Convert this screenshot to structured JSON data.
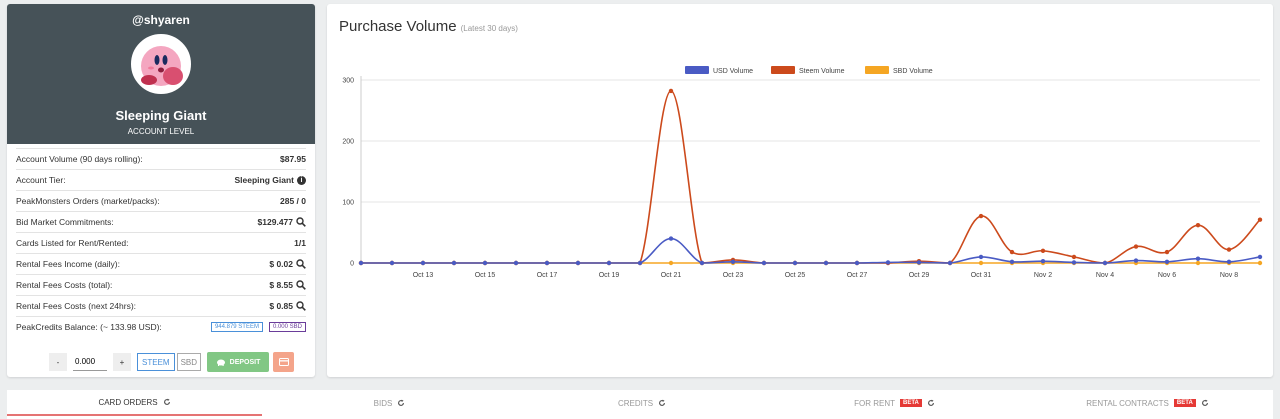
{
  "profile": {
    "username": "@shyaren",
    "level_name": "Sleeping Giant",
    "level_label": "ACCOUNT LEVEL"
  },
  "stats": [
    {
      "label": "Account Volume",
      "sub": "(90 days rolling):",
      "value": "$87.95",
      "icon": ""
    },
    {
      "label": "Account Tier:",
      "sub": "",
      "value": "Sleeping Giant",
      "icon": "info-icon"
    },
    {
      "label": "PeakMonsters Orders",
      "sub": "(market/packs):",
      "value": "285 / 0",
      "icon": ""
    },
    {
      "label": "Bid Market Commitments:",
      "sub": "",
      "value": "$129.477",
      "icon": "magnify-icon"
    },
    {
      "label": "Cards Listed for Rent/Rented:",
      "sub": "",
      "value": "1/1",
      "icon": ""
    },
    {
      "label": "Rental Fees Income",
      "sub": "(daily):",
      "value": "$ 0.02",
      "icon": "magnify-icon"
    },
    {
      "label": "Rental Fees Costs",
      "sub": "(total):",
      "value": "$ 8.55",
      "icon": "magnify-icon"
    },
    {
      "label": "Rental Fees Costs",
      "sub": "(next 24hrs):",
      "value": "$ 0.85",
      "icon": "magnify-icon"
    }
  ],
  "balance": {
    "label": "PeakCredits Balance:",
    "sub": "(~ 133.98 USD):",
    "steem": "944.879 STEEM",
    "sbd": "0.000 SBD"
  },
  "controls": {
    "minus": "-",
    "amount": "0.000",
    "plus": "+",
    "steem": "STEEM",
    "sbd": "SBD",
    "deposit": "DEPOSIT"
  },
  "chart": {
    "title": "Purchase Volume",
    "subtitle": "(Latest 30 days)"
  },
  "chart_data": {
    "type": "line",
    "x": [
      "Oct 11",
      "Oct 12",
      "Oct 13",
      "Oct 14",
      "Oct 15",
      "Oct 16",
      "Oct 17",
      "Oct 18",
      "Oct 19",
      "Oct 20",
      "Oct 21",
      "Oct 22",
      "Oct 23",
      "Oct 24",
      "Oct 25",
      "Oct 26",
      "Oct 27",
      "Oct 28",
      "Oct 29",
      "Oct 30",
      "Oct 31",
      "Nov 1",
      "Nov 2",
      "Nov 3",
      "Nov 4",
      "Nov 5",
      "Nov 6",
      "Nov 7",
      "Nov 8",
      "Nov 9"
    ],
    "xticks": [
      "Oct 13",
      "Oct 15",
      "Oct 17",
      "Oct 19",
      "Oct 21",
      "Oct 23",
      "Oct 25",
      "Oct 27",
      "Oct 29",
      "Oct 31",
      "Nov 2",
      "Nov 4",
      "Nov 6",
      "Nov 8"
    ],
    "yticks": [
      "0",
      "100",
      "200",
      "300"
    ],
    "ylim": [
      0,
      300
    ],
    "legend_position": "top",
    "series": [
      {
        "name": "USD Volume",
        "color": "#4a5bc4",
        "values": [
          0,
          0,
          0,
          0,
          0,
          0,
          0,
          0,
          0,
          0,
          40,
          0,
          2,
          0,
          0,
          0,
          0,
          1,
          1,
          0,
          10,
          2,
          3,
          1,
          0,
          4,
          2,
          7,
          2,
          10
        ]
      },
      {
        "name": "Steem Volume",
        "color": "#cc4a1c",
        "values": [
          0,
          0,
          0,
          0,
          0,
          0,
          0,
          0,
          0,
          0,
          282,
          0,
          5,
          0,
          0,
          0,
          0,
          0,
          3,
          0,
          77,
          18,
          20,
          10,
          0,
          27,
          18,
          62,
          22,
          71
        ]
      },
      {
        "name": "SBD Volume",
        "color": "#f5a623",
        "values": [
          0,
          0,
          0,
          0,
          0,
          0,
          0,
          0,
          0,
          0,
          0,
          0,
          0,
          0,
          0,
          0,
          0,
          0,
          0,
          0,
          0,
          0,
          0,
          0,
          0,
          0,
          0,
          0,
          0,
          0
        ]
      }
    ]
  },
  "tabs": [
    {
      "label": "CARD ORDERS",
      "beta": ""
    },
    {
      "label": "BIDS",
      "beta": ""
    },
    {
      "label": "CREDITS",
      "beta": ""
    },
    {
      "label": "FOR RENT",
      "beta": "BETA"
    },
    {
      "label": "RENTAL CONTRACTS",
      "beta": "BETA"
    }
  ],
  "colors": {
    "profile_bg": "#465258",
    "deposit": "#81c784",
    "card_btn": "#f4a48a",
    "active_tab_underline": "#e57373",
    "beta": "#e53935"
  }
}
